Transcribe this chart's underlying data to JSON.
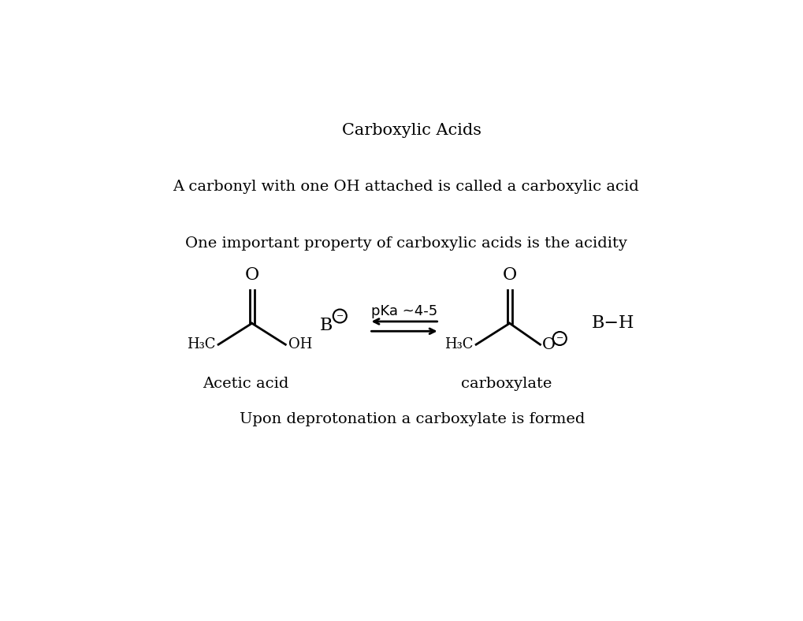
{
  "title": "Carboxylic Acids",
  "line1": "A carbonyl with one OH attached is called a carboxylic acid",
  "line2": "One important property of carboxylic acids is the acidity",
  "label_acetic": "Acetic acid",
  "label_carboxylate": "carboxylate",
  "label_pka": "pKa ~4-5",
  "line3": "Upon deprotonation a carboxylate is formed",
  "bg_color": "#ffffff",
  "text_color": "#000000",
  "font_size_title": 15,
  "font_size_body": 14,
  "font_size_chem": 15,
  "font_size_small": 13
}
